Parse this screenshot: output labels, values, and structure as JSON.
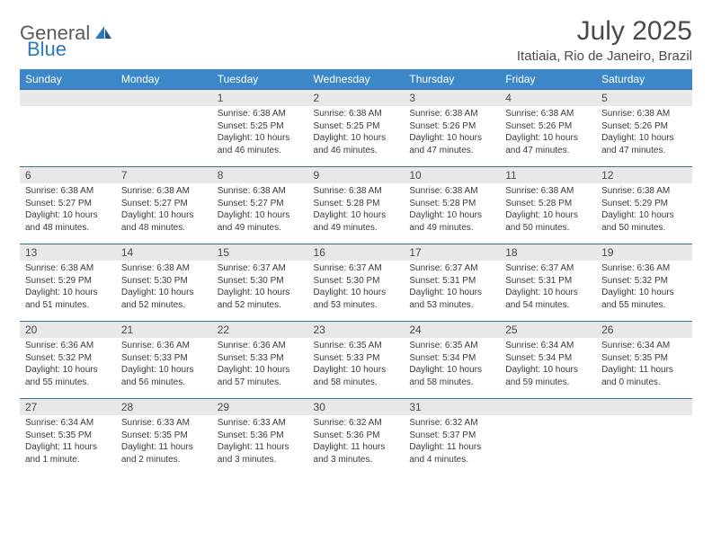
{
  "logo": {
    "general": "General",
    "blue": "Blue"
  },
  "title": "July 2025",
  "location": "Itatiaia, Rio de Janeiro, Brazil",
  "colors": {
    "header_bg": "#3b87c8",
    "header_text": "#ffffff",
    "row_border": "#3b6f9e",
    "date_bg": "#e8e8e8",
    "text": "#4a4a4a",
    "logo_gray": "#5a5a5a",
    "logo_blue": "#2a7ab9"
  },
  "day_names": [
    "Sunday",
    "Monday",
    "Tuesday",
    "Wednesday",
    "Thursday",
    "Friday",
    "Saturday"
  ],
  "grid": [
    [
      null,
      null,
      {
        "n": "1",
        "sr": "6:38 AM",
        "ss": "5:25 PM",
        "dl": "10 hours and 46 minutes."
      },
      {
        "n": "2",
        "sr": "6:38 AM",
        "ss": "5:25 PM",
        "dl": "10 hours and 46 minutes."
      },
      {
        "n": "3",
        "sr": "6:38 AM",
        "ss": "5:26 PM",
        "dl": "10 hours and 47 minutes."
      },
      {
        "n": "4",
        "sr": "6:38 AM",
        "ss": "5:26 PM",
        "dl": "10 hours and 47 minutes."
      },
      {
        "n": "5",
        "sr": "6:38 AM",
        "ss": "5:26 PM",
        "dl": "10 hours and 47 minutes."
      }
    ],
    [
      {
        "n": "6",
        "sr": "6:38 AM",
        "ss": "5:27 PM",
        "dl": "10 hours and 48 minutes."
      },
      {
        "n": "7",
        "sr": "6:38 AM",
        "ss": "5:27 PM",
        "dl": "10 hours and 48 minutes."
      },
      {
        "n": "8",
        "sr": "6:38 AM",
        "ss": "5:27 PM",
        "dl": "10 hours and 49 minutes."
      },
      {
        "n": "9",
        "sr": "6:38 AM",
        "ss": "5:28 PM",
        "dl": "10 hours and 49 minutes."
      },
      {
        "n": "10",
        "sr": "6:38 AM",
        "ss": "5:28 PM",
        "dl": "10 hours and 49 minutes."
      },
      {
        "n": "11",
        "sr": "6:38 AM",
        "ss": "5:28 PM",
        "dl": "10 hours and 50 minutes."
      },
      {
        "n": "12",
        "sr": "6:38 AM",
        "ss": "5:29 PM",
        "dl": "10 hours and 50 minutes."
      }
    ],
    [
      {
        "n": "13",
        "sr": "6:38 AM",
        "ss": "5:29 PM",
        "dl": "10 hours and 51 minutes."
      },
      {
        "n": "14",
        "sr": "6:38 AM",
        "ss": "5:30 PM",
        "dl": "10 hours and 52 minutes."
      },
      {
        "n": "15",
        "sr": "6:37 AM",
        "ss": "5:30 PM",
        "dl": "10 hours and 52 minutes."
      },
      {
        "n": "16",
        "sr": "6:37 AM",
        "ss": "5:30 PM",
        "dl": "10 hours and 53 minutes."
      },
      {
        "n": "17",
        "sr": "6:37 AM",
        "ss": "5:31 PM",
        "dl": "10 hours and 53 minutes."
      },
      {
        "n": "18",
        "sr": "6:37 AM",
        "ss": "5:31 PM",
        "dl": "10 hours and 54 minutes."
      },
      {
        "n": "19",
        "sr": "6:36 AM",
        "ss": "5:32 PM",
        "dl": "10 hours and 55 minutes."
      }
    ],
    [
      {
        "n": "20",
        "sr": "6:36 AM",
        "ss": "5:32 PM",
        "dl": "10 hours and 55 minutes."
      },
      {
        "n": "21",
        "sr": "6:36 AM",
        "ss": "5:33 PM",
        "dl": "10 hours and 56 minutes."
      },
      {
        "n": "22",
        "sr": "6:36 AM",
        "ss": "5:33 PM",
        "dl": "10 hours and 57 minutes."
      },
      {
        "n": "23",
        "sr": "6:35 AM",
        "ss": "5:33 PM",
        "dl": "10 hours and 58 minutes."
      },
      {
        "n": "24",
        "sr": "6:35 AM",
        "ss": "5:34 PM",
        "dl": "10 hours and 58 minutes."
      },
      {
        "n": "25",
        "sr": "6:34 AM",
        "ss": "5:34 PM",
        "dl": "10 hours and 59 minutes."
      },
      {
        "n": "26",
        "sr": "6:34 AM",
        "ss": "5:35 PM",
        "dl": "11 hours and 0 minutes."
      }
    ],
    [
      {
        "n": "27",
        "sr": "6:34 AM",
        "ss": "5:35 PM",
        "dl": "11 hours and 1 minute."
      },
      {
        "n": "28",
        "sr": "6:33 AM",
        "ss": "5:35 PM",
        "dl": "11 hours and 2 minutes."
      },
      {
        "n": "29",
        "sr": "6:33 AM",
        "ss": "5:36 PM",
        "dl": "11 hours and 3 minutes."
      },
      {
        "n": "30",
        "sr": "6:32 AM",
        "ss": "5:36 PM",
        "dl": "11 hours and 3 minutes."
      },
      {
        "n": "31",
        "sr": "6:32 AM",
        "ss": "5:37 PM",
        "dl": "11 hours and 4 minutes."
      },
      null,
      null
    ]
  ],
  "labels": {
    "sunrise": "Sunrise:",
    "sunset": "Sunset:",
    "daylight": "Daylight:"
  }
}
